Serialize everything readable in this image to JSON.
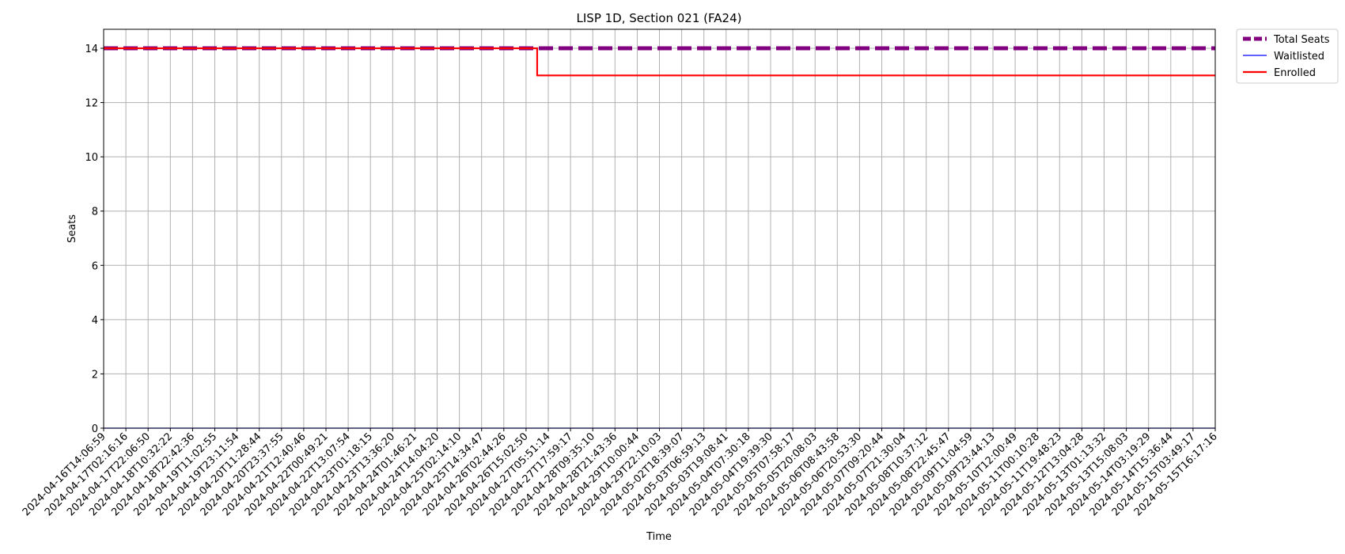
{
  "chart_data": {
    "type": "line",
    "title": "LISP 1D, Section 021 (FA24)",
    "xlabel": "Time",
    "ylabel": "Seats",
    "ylim": [
      0,
      14.7
    ],
    "yticks": [
      0,
      2,
      4,
      6,
      8,
      10,
      12,
      14
    ],
    "grid": true,
    "legend_position": "outside-top-right",
    "categories": [
      "2024-04-16T14:06:59",
      "2024-04-17T02:16:16",
      "2024-04-17T22:06:50",
      "2024-04-18T10:32:22",
      "2024-04-18T22:42:36",
      "2024-04-19T11:02:55",
      "2024-04-19T23:11:54",
      "2024-04-20T11:28:44",
      "2024-04-20T23:37:55",
      "2024-04-21T12:40:46",
      "2024-04-22T00:49:21",
      "2024-04-22T13:07:54",
      "2024-04-23T01:18:15",
      "2024-04-23T13:36:20",
      "2024-04-24T01:46:21",
      "2024-04-24T14:04:20",
      "2024-04-25T02:14:10",
      "2024-04-25T14:34:47",
      "2024-04-26T02:44:26",
      "2024-04-26T15:02:50",
      "2024-04-27T05:51:14",
      "2024-04-27T17:59:17",
      "2024-04-28T09:35:10",
      "2024-04-28T21:43:36",
      "2024-04-29T10:00:44",
      "2024-04-29T22:10:03",
      "2024-05-02T18:39:07",
      "2024-05-03T06:59:13",
      "2024-05-03T19:08:41",
      "2024-05-04T07:30:18",
      "2024-05-04T19:39:30",
      "2024-05-05T07:58:17",
      "2024-05-05T20:08:03",
      "2024-05-06T08:43:58",
      "2024-05-06T20:53:30",
      "2024-05-07T09:20:44",
      "2024-05-07T21:30:04",
      "2024-05-08T10:37:12",
      "2024-05-08T22:45:47",
      "2024-05-09T11:04:59",
      "2024-05-09T23:44:13",
      "2024-05-10T12:00:49",
      "2024-05-11T00:10:28",
      "2024-05-11T19:48:23",
      "2024-05-12T13:04:28",
      "2024-05-13T01:13:32",
      "2024-05-13T15:08:03",
      "2024-05-14T03:19:29",
      "2024-05-14T15:36:44",
      "2024-05-15T03:49:17",
      "2024-05-15T16:17:16"
    ],
    "series": [
      {
        "name": "Total Seats",
        "color": "#800080",
        "style": "dashed",
        "points": [
          [
            0,
            14
          ],
          [
            50,
            14
          ]
        ]
      },
      {
        "name": "Waitlisted",
        "color": "#0000ff",
        "style": "solid",
        "points": [
          [
            0,
            0
          ],
          [
            50,
            0
          ]
        ]
      },
      {
        "name": "Enrolled",
        "color": "#ff0000",
        "style": "step",
        "points": [
          [
            0,
            14
          ],
          [
            19.5,
            14
          ],
          [
            19.5,
            13
          ],
          [
            50,
            13
          ]
        ]
      }
    ]
  }
}
